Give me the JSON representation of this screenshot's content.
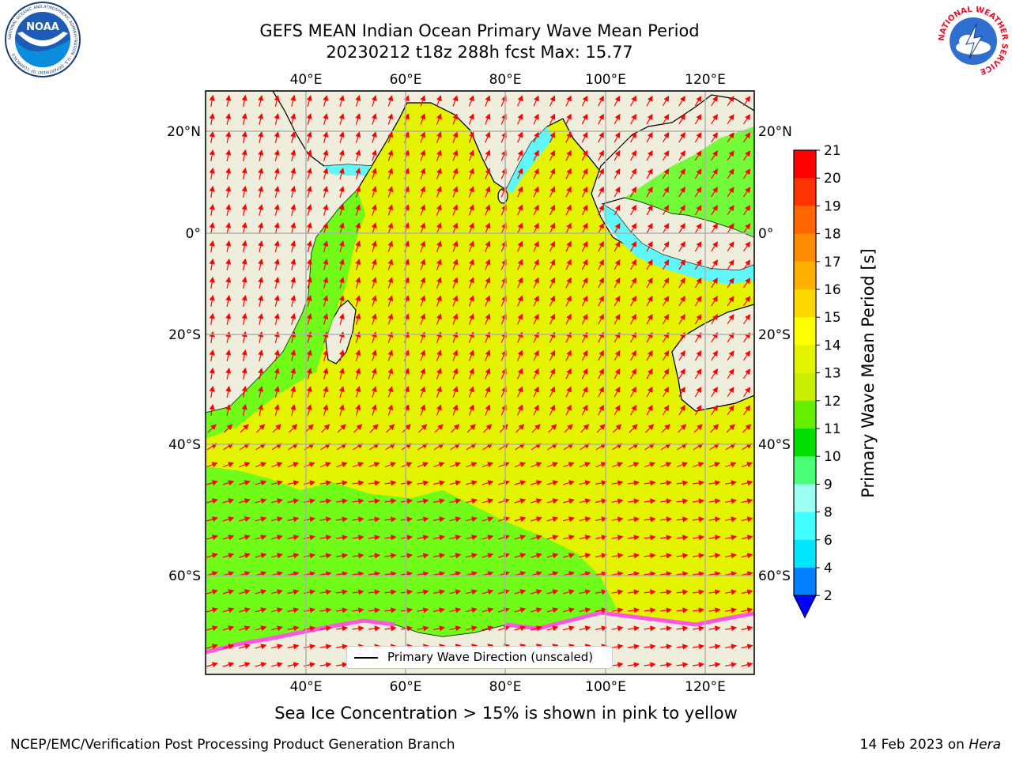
{
  "header": {
    "title_line1": "GEFS MEAN Indian Ocean Primary Wave Mean Period",
    "title_line2": "20230212 t18z 288h fcst   Max: 15.77"
  },
  "map": {
    "lon_labels": [
      "40°E",
      "60°E",
      "80°E",
      "100°E",
      "120°E"
    ],
    "lat_labels": [
      "20°N",
      "0°",
      "20°S",
      "40°S",
      "60°S"
    ],
    "colors": {
      "land": "#efeedd",
      "ocean_main": "#e4f400",
      "ocean_green": "#5dfb1c",
      "ocean_cyan": "#5ff7f8",
      "arrow": "#ff0000",
      "ice_pink": "#ff55e0"
    },
    "legend_label": "Primary Wave Direction (unscaled)"
  },
  "colorbar": {
    "label": "Primary Wave Mean Period [s]",
    "ticks": [
      "21",
      "20",
      "19",
      "18",
      "17",
      "16",
      "15",
      "14",
      "13",
      "12",
      "11",
      "10",
      "9",
      "8",
      "6",
      "4",
      "2"
    ],
    "colors": [
      "#ff0000",
      "#ff3300",
      "#ff6600",
      "#ff8c00",
      "#ffb000",
      "#ffd700",
      "#ffff00",
      "#e4f400",
      "#c8f000",
      "#66ee00",
      "#00e000",
      "#4cff78",
      "#9cfff4",
      "#44ffff",
      "#00e6ff",
      "#0080ff",
      "#0000ff"
    ]
  },
  "caption": "Sea Ice Concentration > 15% is shown in pink to yellow",
  "footer": {
    "left": "NCEP/EMC/Verification Post Processing Product Generation Branch",
    "right_prefix": "14 Feb 2023 on ",
    "right_machine": "Hera"
  },
  "logos": {
    "noaa_text": "NOAA",
    "noaa_ring_text": "NATIONAL OCEANIC AND ATMOSPHERIC ADMINISTRATION · U.S. DEPARTMENT OF COMMERCE",
    "nws_ring_text": "NATIONAL WEATHER SERVICE"
  }
}
